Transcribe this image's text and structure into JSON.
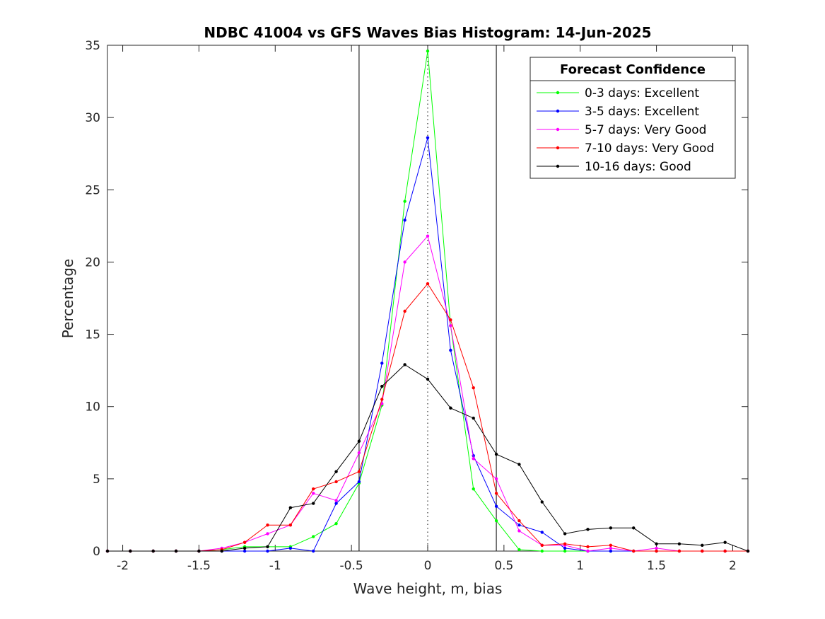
{
  "chart_data": {
    "type": "line",
    "title": "NDBC 41004 vs GFS Waves Bias Histogram: 14-Jun-2025",
    "xlabel": "Wave height, m, bias",
    "ylabel": "Percentage",
    "xlim": [
      -2.1,
      2.1
    ],
    "ylim": [
      0,
      35
    ],
    "xticks": [
      -2,
      -1.5,
      -1,
      -0.5,
      0,
      0.5,
      1,
      1.5,
      2
    ],
    "xtick_labels": [
      "-2",
      "-1.5",
      "-1",
      "-0.5",
      "0",
      "0.5",
      "1",
      "1.5",
      "2"
    ],
    "yticks": [
      0,
      5,
      10,
      15,
      20,
      25,
      30,
      35
    ],
    "ytick_labels": [
      "0",
      "5",
      "10",
      "15",
      "20",
      "25",
      "30",
      "35"
    ],
    "grid": false,
    "legend_title": "Forecast Confidence",
    "legend_position": "top-right",
    "vertical_lines": [
      {
        "x": -0.45,
        "style": "solid"
      },
      {
        "x": 0,
        "style": "dotted"
      },
      {
        "x": 0.45,
        "style": "solid"
      }
    ],
    "x": [
      -2.1,
      -1.95,
      -1.8,
      -1.65,
      -1.5,
      -1.35,
      -1.2,
      -1.05,
      -0.9,
      -0.75,
      -0.6,
      -0.45,
      -0.3,
      -0.15,
      0,
      0.15,
      0.3,
      0.45,
      0.6,
      0.75,
      0.9,
      1.05,
      1.2,
      1.35,
      1.5,
      1.65,
      1.8,
      1.95,
      2.1
    ],
    "series": [
      {
        "name": "0-3 days: Excellent",
        "color": "#00ff00",
        "values": [
          0,
          0,
          0,
          0,
          0,
          0.1,
          0.3,
          0.3,
          0.3,
          1.0,
          1.9,
          4.7,
          10.1,
          24.2,
          34.6,
          15.6,
          4.3,
          2.1,
          0.1,
          0,
          0,
          0,
          0,
          0,
          0,
          0,
          0,
          0,
          0
        ]
      },
      {
        "name": "3-5 days: Excellent",
        "color": "#0000ff",
        "values": [
          0,
          0,
          0,
          0,
          0,
          0,
          0,
          0,
          0.2,
          0,
          3.3,
          4.8,
          13.0,
          22.9,
          28.6,
          13.9,
          6.6,
          3.1,
          1.8,
          1.3,
          0.2,
          0,
          0,
          0,
          0,
          0,
          0,
          0,
          0
        ]
      },
      {
        "name": "5-7 days: Very Good",
        "color": "#ff00ff",
        "values": [
          0,
          0,
          0,
          0,
          0,
          0.2,
          0.6,
          1.2,
          1.8,
          4.0,
          3.5,
          6.8,
          10.2,
          20.0,
          21.8,
          15.6,
          6.4,
          5.0,
          1.4,
          0.4,
          0.4,
          0,
          0.2,
          0,
          0.2,
          0,
          0,
          0,
          0
        ]
      },
      {
        "name": "7-10 days: Very Good",
        "color": "#ff0000",
        "values": [
          0,
          0,
          0,
          0,
          0,
          0.1,
          0.6,
          1.8,
          1.8,
          4.3,
          4.8,
          5.5,
          10.5,
          16.6,
          18.5,
          16.0,
          11.3,
          4.0,
          2.1,
          0.4,
          0.5,
          0.3,
          0.4,
          0,
          0,
          0,
          0,
          0,
          0
        ]
      },
      {
        "name": "10-16 days: Good",
        "color": "#000000",
        "values": [
          0,
          0,
          0,
          0,
          0,
          0,
          0.2,
          0.3,
          3.0,
          3.3,
          5.5,
          7.6,
          11.4,
          12.9,
          11.9,
          9.9,
          9.2,
          6.7,
          6.0,
          3.4,
          1.2,
          1.5,
          1.6,
          1.6,
          0.5,
          0.5,
          0.4,
          0.6,
          0
        ]
      }
    ]
  }
}
